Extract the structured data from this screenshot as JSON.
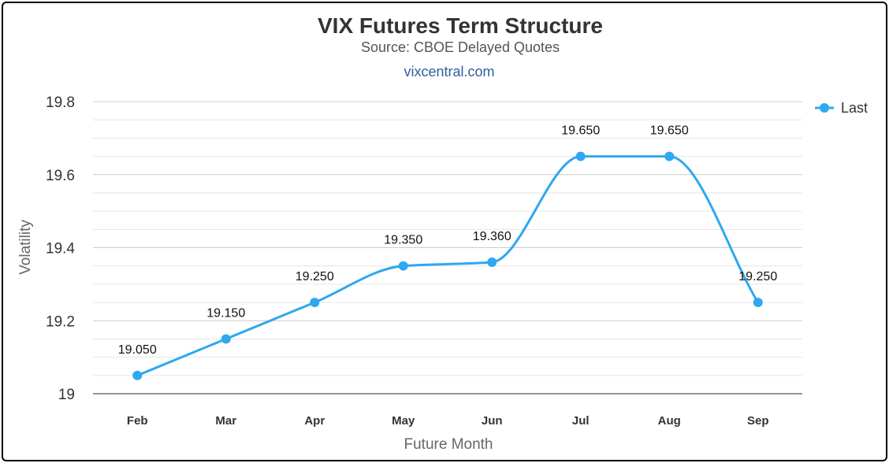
{
  "chart_data": {
    "type": "line",
    "title": "VIX Futures Term Structure",
    "subtitle": "Source: CBOE Delayed Quotes",
    "credit": "vixcentral.com",
    "xlabel": "Future Month",
    "ylabel": "Volatility",
    "categories": [
      "Feb",
      "Mar",
      "Apr",
      "May",
      "Jun",
      "Jul",
      "Aug",
      "Sep"
    ],
    "ylim": [
      19.0,
      19.8
    ],
    "yticks": [
      "19",
      "19.2",
      "19.4",
      "19.6",
      "19.8"
    ],
    "grid": true,
    "legend_position": "top-right",
    "series": [
      {
        "name": "Last",
        "color": "#2ea8f0",
        "values": [
          19.05,
          19.15,
          19.25,
          19.35,
          19.36,
          19.65,
          19.65,
          19.25
        ],
        "data_labels": [
          "19.050",
          "19.150",
          "19.250",
          "19.350",
          "19.360",
          "19.650",
          "19.650",
          "19.250"
        ]
      }
    ]
  }
}
